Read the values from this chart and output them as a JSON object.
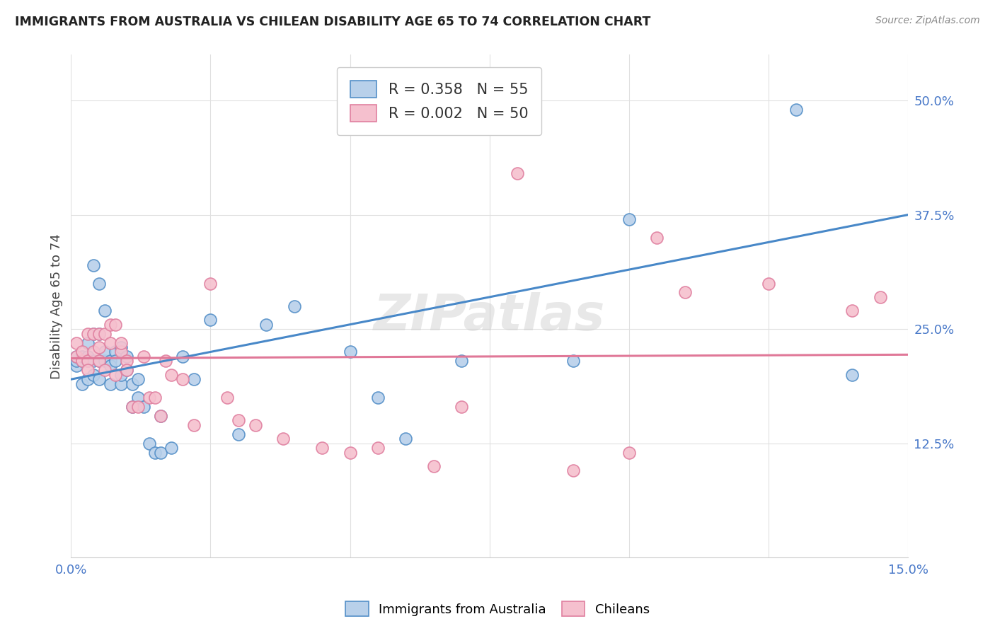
{
  "title": "IMMIGRANTS FROM AUSTRALIA VS CHILEAN DISABILITY AGE 65 TO 74 CORRELATION CHART",
  "source": "Source: ZipAtlas.com",
  "ylabel": "Disability Age 65 to 74",
  "xlim": [
    0.0,
    0.15
  ],
  "ylim": [
    0.0,
    0.55
  ],
  "xticks": [
    0.0,
    0.025,
    0.05,
    0.075,
    0.1,
    0.125,
    0.15
  ],
  "xticklabels": [
    "0.0%",
    "",
    "",
    "",
    "",
    "",
    "15.0%"
  ],
  "yticks": [
    0.0,
    0.125,
    0.25,
    0.375,
    0.5
  ],
  "yticklabels": [
    "",
    "12.5%",
    "25.0%",
    "37.5%",
    "50.0%"
  ],
  "grid_color": "#e0e0e0",
  "background_color": "#ffffff",
  "watermark": "ZIPatlas",
  "legend_r1": "R = 0.358   N = 55",
  "legend_r2": "R = 0.002   N = 50",
  "blue_fill": "#b8d0ea",
  "pink_fill": "#f5c0ce",
  "blue_edge": "#5590c8",
  "pink_edge": "#e080a0",
  "blue_line": "#4888c8",
  "pink_line": "#e07898",
  "label_color": "#4878c8",
  "title_color": "#222222",
  "source_color": "#888888",
  "aus_scatter_x": [
    0.001,
    0.001,
    0.001,
    0.002,
    0.002,
    0.002,
    0.003,
    0.003,
    0.003,
    0.003,
    0.004,
    0.004,
    0.004,
    0.004,
    0.005,
    0.005,
    0.005,
    0.005,
    0.006,
    0.006,
    0.006,
    0.007,
    0.007,
    0.007,
    0.008,
    0.008,
    0.009,
    0.009,
    0.009,
    0.01,
    0.01,
    0.011,
    0.011,
    0.012,
    0.012,
    0.013,
    0.014,
    0.015,
    0.016,
    0.016,
    0.018,
    0.02,
    0.022,
    0.025,
    0.03,
    0.035,
    0.04,
    0.05,
    0.055,
    0.06,
    0.07,
    0.09,
    0.1,
    0.13,
    0.14
  ],
  "aus_scatter_y": [
    0.21,
    0.215,
    0.22,
    0.19,
    0.215,
    0.22,
    0.195,
    0.215,
    0.22,
    0.235,
    0.2,
    0.215,
    0.245,
    0.32,
    0.195,
    0.215,
    0.245,
    0.3,
    0.215,
    0.225,
    0.27,
    0.19,
    0.215,
    0.21,
    0.225,
    0.215,
    0.19,
    0.2,
    0.23,
    0.205,
    0.22,
    0.165,
    0.19,
    0.175,
    0.195,
    0.165,
    0.125,
    0.115,
    0.115,
    0.155,
    0.12,
    0.22,
    0.195,
    0.26,
    0.135,
    0.255,
    0.275,
    0.225,
    0.175,
    0.13,
    0.215,
    0.215,
    0.37,
    0.49,
    0.2
  ],
  "chl_scatter_x": [
    0.001,
    0.001,
    0.002,
    0.002,
    0.003,
    0.003,
    0.003,
    0.004,
    0.004,
    0.005,
    0.005,
    0.005,
    0.006,
    0.006,
    0.007,
    0.007,
    0.008,
    0.008,
    0.009,
    0.009,
    0.01,
    0.01,
    0.011,
    0.012,
    0.013,
    0.014,
    0.015,
    0.016,
    0.017,
    0.018,
    0.02,
    0.022,
    0.025,
    0.028,
    0.03,
    0.033,
    0.038,
    0.045,
    0.05,
    0.055,
    0.065,
    0.07,
    0.08,
    0.09,
    0.1,
    0.105,
    0.11,
    0.125,
    0.14,
    0.145
  ],
  "chl_scatter_y": [
    0.22,
    0.235,
    0.215,
    0.225,
    0.215,
    0.245,
    0.205,
    0.245,
    0.225,
    0.245,
    0.23,
    0.215,
    0.245,
    0.205,
    0.255,
    0.235,
    0.255,
    0.2,
    0.225,
    0.235,
    0.215,
    0.205,
    0.165,
    0.165,
    0.22,
    0.175,
    0.175,
    0.155,
    0.215,
    0.2,
    0.195,
    0.145,
    0.3,
    0.175,
    0.15,
    0.145,
    0.13,
    0.12,
    0.115,
    0.12,
    0.1,
    0.165,
    0.42,
    0.095,
    0.115,
    0.35,
    0.29,
    0.3,
    0.27,
    0.285
  ],
  "aus_trend_x": [
    0.0,
    0.15
  ],
  "aus_trend_y": [
    0.195,
    0.375
  ],
  "chl_trend_x": [
    0.0,
    0.15
  ],
  "chl_trend_y": [
    0.218,
    0.222
  ]
}
